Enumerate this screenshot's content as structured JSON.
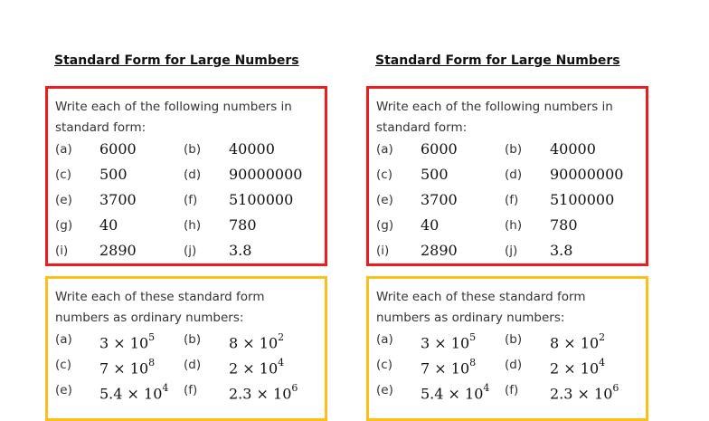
{
  "worksheet": {
    "title": "Standard Form for Large Numbers",
    "colors": {
      "box1_border": "#ee1c1c",
      "box2_border": "#fdbf1a"
    },
    "section1": {
      "intro_line1": "Write each of the following numbers in",
      "intro_line2": "standard form:",
      "items": [
        {
          "label": "(a)",
          "value": "6000"
        },
        {
          "label": "(b)",
          "value": "40000"
        },
        {
          "label": "(c)",
          "value": "500"
        },
        {
          "label": "(d)",
          "value": "90000000"
        },
        {
          "label": "(e)",
          "value": "3700"
        },
        {
          "label": "(f)",
          "value": "5100000"
        },
        {
          "label": "(g)",
          "value": "40"
        },
        {
          "label": "(h)",
          "value": "780"
        },
        {
          "label": "(i)",
          "value": "2890"
        },
        {
          "label": "(j)",
          "value": "3.8"
        }
      ]
    },
    "section2": {
      "intro_line1": "Write each of these standard form",
      "intro_line2": "numbers as ordinary numbers:",
      "items": [
        {
          "label": "(a)",
          "base": "3 × 10",
          "exp": "5"
        },
        {
          "label": "(b)",
          "base": "8 × 10",
          "exp": "2"
        },
        {
          "label": "(c)",
          "base": "7 × 10",
          "exp": "8"
        },
        {
          "label": "(d)",
          "base": "2 × 10",
          "exp": "4"
        },
        {
          "label": "(e)",
          "base": "5.4 × 10",
          "exp": "4"
        },
        {
          "label": "(f)",
          "base": "2.3 × 10",
          "exp": "6"
        }
      ]
    }
  }
}
